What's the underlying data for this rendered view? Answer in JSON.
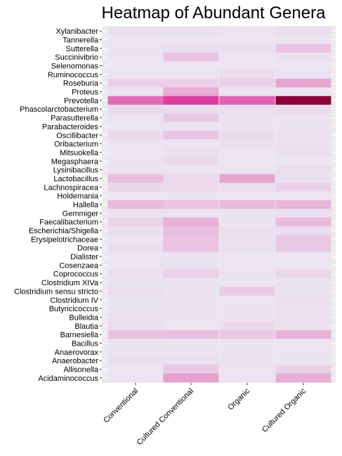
{
  "chart_data": {
    "type": "heatmap",
    "title": "Heatmap of Abundant Genera",
    "xlabel": "",
    "ylabel": "",
    "x_categories": [
      "Conventional",
      "Cultured Conventional",
      "Organic",
      "Cultured Organic"
    ],
    "y_categories": [
      "Xylanibacter",
      "Tannerella",
      "Sutterella",
      "Succinivibrio",
      "Selenomonas",
      "Ruminococcus",
      "Roseburia",
      "Proteus",
      "Prevotella",
      "Phascolarctobacterium",
      "Parasutterella",
      "Parabacteroides",
      "Oscillibacter",
      "Oribacterium",
      "Mitsuokella",
      "Megasphaera",
      "Lysinibacillus",
      "Lactobacillus",
      "Lachnospiracea",
      "Holdemania",
      "Hallella",
      "Gemmiger",
      "Faecalibacterium",
      "Escherichia/Shigella",
      "Erysipelotrichaceae",
      "Dorea",
      "Dialister",
      "Cosenzaea",
      "Coprococcus",
      "Clostridium XIVa",
      "Clostridium sensu stricto",
      "Clostridium IV",
      "Butyricicoccus",
      "Bulleidia",
      "Blautia",
      "Barnesiella",
      "Bacillus",
      "Anaerovorax",
      "Anaerobacter",
      "Allisonella",
      "Acidaminococcus"
    ],
    "values": [
      [
        0.03,
        0.03,
        0.02,
        0.04
      ],
      [
        0.01,
        0.01,
        0.01,
        0.02
      ],
      [
        0.02,
        0.04,
        0.03,
        0.16
      ],
      [
        0.02,
        0.16,
        0.02,
        0.03
      ],
      [
        0.01,
        0.01,
        0.01,
        0.01
      ],
      [
        0.02,
        0.02,
        0.05,
        0.03
      ],
      [
        0.1,
        0.1,
        0.1,
        0.3
      ],
      [
        0.02,
        0.26,
        0.02,
        0.02
      ],
      [
        0.55,
        0.75,
        0.58,
        1.0
      ],
      [
        0.06,
        0.04,
        0.04,
        0.06
      ],
      [
        0.02,
        0.14,
        0.02,
        0.02
      ],
      [
        0.01,
        0.02,
        0.02,
        0.02
      ],
      [
        0.06,
        0.15,
        0.05,
        0.03
      ],
      [
        0.02,
        0.02,
        0.03,
        0.03
      ],
      [
        0.01,
        0.04,
        0.01,
        0.04
      ],
      [
        0.02,
        0.06,
        0.01,
        0.01
      ],
      [
        0.02,
        0.01,
        0.02,
        0.05
      ],
      [
        0.18,
        0.06,
        0.3,
        0.03
      ],
      [
        0.07,
        0.06,
        0.05,
        0.1
      ],
      [
        0.01,
        0.02,
        0.01,
        0.01
      ],
      [
        0.2,
        0.16,
        0.2,
        0.22
      ],
      [
        0.02,
        0.02,
        0.02,
        0.03
      ],
      [
        0.08,
        0.24,
        0.02,
        0.2
      ],
      [
        0.04,
        0.18,
        0.04,
        0.04
      ],
      [
        0.02,
        0.16,
        0.03,
        0.13
      ],
      [
        0.04,
        0.15,
        0.03,
        0.13
      ],
      [
        0.01,
        0.02,
        0.01,
        0.01
      ],
      [
        0.01,
        0.03,
        0.01,
        0.01
      ],
      [
        0.03,
        0.1,
        0.02,
        0.07
      ],
      [
        0.02,
        0.02,
        0.02,
        0.02
      ],
      [
        0.05,
        0.02,
        0.12,
        0.02
      ],
      [
        0.02,
        0.02,
        0.02,
        0.04
      ],
      [
        0.02,
        0.02,
        0.02,
        0.03
      ],
      [
        0.03,
        0.02,
        0.02,
        0.03
      ],
      [
        0.05,
        0.02,
        0.06,
        0.03
      ],
      [
        0.17,
        0.18,
        0.14,
        0.24
      ],
      [
        0.02,
        0.02,
        0.02,
        0.01
      ],
      [
        0.02,
        0.02,
        0.02,
        0.02
      ],
      [
        0.03,
        0.04,
        0.02,
        0.02
      ],
      [
        0.02,
        0.14,
        0.02,
        0.1
      ],
      [
        0.02,
        0.32,
        0.02,
        0.26
      ]
    ],
    "color_low": "#ece7f2",
    "color_mid": "#dd3fa0",
    "color_high": "#8a0038",
    "background_color": "#ebebeb",
    "grid": true,
    "legend": "none"
  }
}
